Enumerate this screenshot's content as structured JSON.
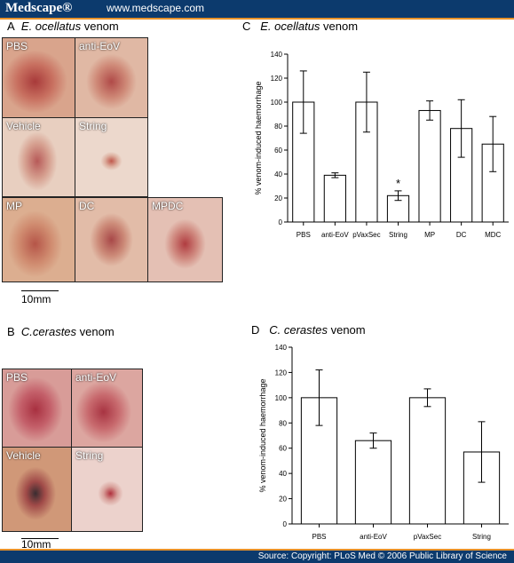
{
  "header": {
    "brand": "Medscape®",
    "url": "www.medscape.com"
  },
  "footer": {
    "source": "Source: Copyright: PLoS Med © 2006 Public Library of Science"
  },
  "panelA": {
    "letter": "A",
    "species": "E. ocellatus",
    "suffix": " venom",
    "labels": [
      "PBS",
      "anti-EoV",
      "Vehicle",
      "String",
      "MP",
      "DC",
      "MPDC"
    ],
    "scale": "10mm"
  },
  "panelB": {
    "letter": "B",
    "species": "C.cerastes",
    "suffix": " venom",
    "labels": [
      "PBS",
      "anti-EoV",
      "Vehicle",
      "String"
    ],
    "scale": "10mm"
  },
  "panelC": {
    "letter": "C",
    "species": "E. ocellatus",
    "suffix": " venom"
  },
  "panelD": {
    "letter": "D",
    "species": "C. cerastes",
    "suffix": " venom"
  },
  "chart_data": [
    {
      "type": "bar",
      "categories": [
        "PBS",
        "anti-EoV",
        "pVaxSec",
        "String",
        "MP",
        "DC",
        "MDC"
      ],
      "values": [
        100,
        39,
        100,
        22,
        93,
        78,
        65
      ],
      "errors": [
        26,
        2,
        25,
        4,
        8,
        24,
        23
      ],
      "ylabel": "% venom-induced haemorrhage",
      "ylim": [
        0,
        140
      ],
      "yticks": [
        0,
        20,
        40,
        60,
        80,
        100,
        120,
        140
      ],
      "annotations": [
        {
          "category": "String",
          "text": "*"
        }
      ]
    },
    {
      "type": "bar",
      "categories": [
        "PBS",
        "anti-EoV",
        "pVaxSec",
        "String"
      ],
      "values": [
        100,
        66,
        100,
        57
      ],
      "errors": [
        22,
        6,
        7,
        24
      ],
      "ylabel": "% venom-induced haemorrhage",
      "ylim": [
        0,
        140
      ],
      "yticks": [
        0,
        20,
        40,
        60,
        80,
        100,
        120,
        140
      ]
    }
  ]
}
